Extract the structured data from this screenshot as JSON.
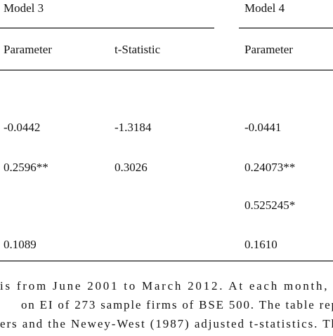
{
  "table": {
    "groups": [
      "Model 3",
      "Model 4"
    ],
    "columns": [
      "Parameter",
      "t-Statistic",
      "Parameter"
    ],
    "rows": [
      [
        "-0.0442",
        "-1.3184",
        "-0.0441"
      ],
      [
        "0.2596**",
        "0.3026",
        "0.24073**"
      ],
      [
        null,
        null,
        "0.525245*"
      ],
      [
        "0.1089",
        null,
        "0.1610"
      ]
    ]
  },
  "note": {
    "lines": [
      "is from June 2001 to March 2012. At each month, t",
      "on EI of 273 sample firms of BSE 500. The table rep",
      "ers and the Newey-West (1987) adjusted t-statistics. Th"
    ]
  }
}
